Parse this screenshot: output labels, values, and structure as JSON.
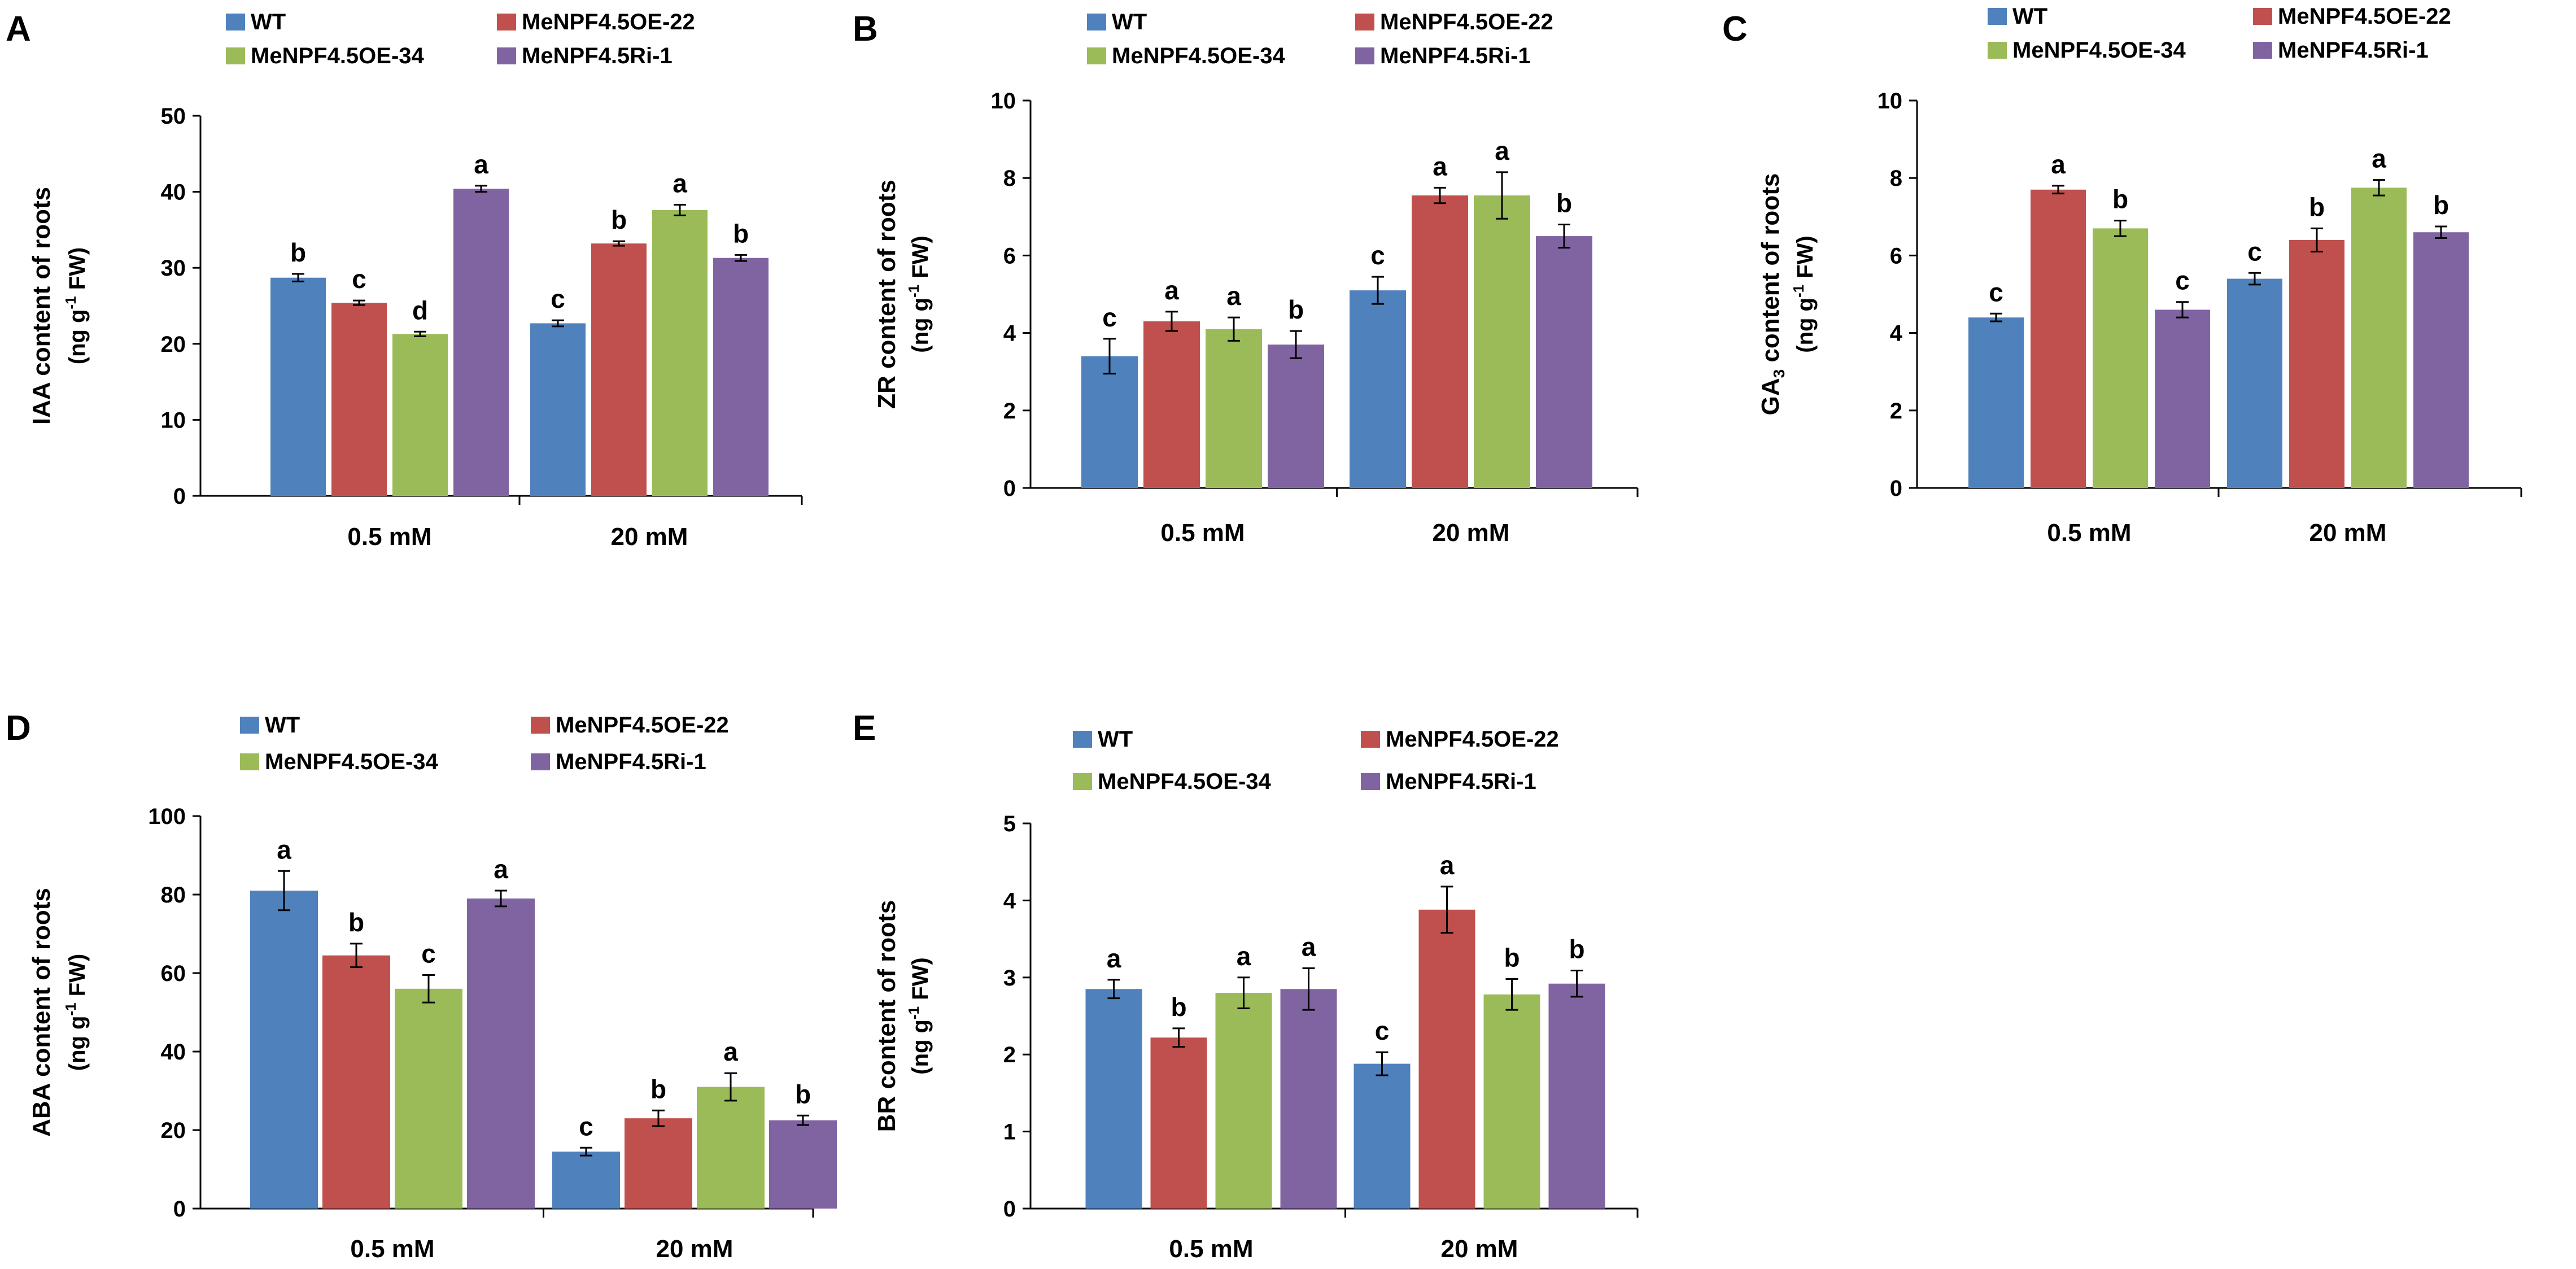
{
  "colors": {
    "WT": "#4f81bd",
    "OE22": "#c0504d",
    "OE34": "#9bbb59",
    "Ri1": "#8064a2",
    "axis": "#000000"
  },
  "chart_data": [
    {
      "panel": "A",
      "type": "bar",
      "categories": [
        "0.5 mM",
        "20 mM"
      ],
      "legend": [
        "WT",
        "MeNPF4.5OE-22",
        "MeNPF4.5OE-34",
        "MeNPF4.5Ri-1"
      ],
      "ylabel_main": "IAA  content of roots",
      "ylabel_unit": "(ng g",
      "ylabel_unit_sup": "-1",
      "ylabel_unit_end": " FW)",
      "ylim": [
        0,
        50
      ],
      "yticks": [
        0,
        10,
        20,
        30,
        40,
        50
      ],
      "ytick_labels": [
        "0",
        "10",
        "20",
        "30",
        "40",
        "50"
      ],
      "series": [
        {
          "name": "WT",
          "values": [
            28.7,
            22.7
          ],
          "errors": [
            0.5,
            0.4
          ],
          "letters": [
            "b",
            "c"
          ]
        },
        {
          "name": "MeNPF4.5OE-22",
          "values": [
            25.4,
            33.2
          ],
          "errors": [
            0.3,
            0.3
          ],
          "letters": [
            "c",
            "b"
          ]
        },
        {
          "name": "MeNPF4.5OE-34",
          "values": [
            21.3,
            37.6
          ],
          "errors": [
            0.3,
            0.7
          ],
          "letters": [
            "d",
            "a"
          ]
        },
        {
          "name": "MeNPF4.5Ri-1",
          "values": [
            40.4,
            31.3
          ],
          "errors": [
            0.4,
            0.4
          ],
          "letters": [
            "a",
            "b"
          ]
        }
      ]
    },
    {
      "panel": "B",
      "type": "bar",
      "categories": [
        "0.5 mM",
        "20 mM"
      ],
      "legend": [
        "WT",
        "MeNPF4.5OE-22",
        "MeNPF4.5OE-34",
        "MeNPF4.5Ri-1"
      ],
      "ylabel_main": "ZR content of roots",
      "ylabel_unit": "(ng g",
      "ylabel_unit_sup": "-1",
      "ylabel_unit_end": " FW)",
      "ylim": [
        0,
        10
      ],
      "yticks": [
        0,
        2,
        4,
        6,
        8,
        10
      ],
      "ytick_labels": [
        "0",
        "2",
        "4",
        "6",
        "8",
        "10"
      ],
      "series": [
        {
          "name": "WT",
          "values": [
            3.4,
            5.1
          ],
          "errors": [
            0.45,
            0.35
          ],
          "letters": [
            "c",
            "c"
          ]
        },
        {
          "name": "MeNPF4.5OE-22",
          "values": [
            4.3,
            7.55
          ],
          "errors": [
            0.25,
            0.2
          ],
          "letters": [
            "a",
            "a"
          ]
        },
        {
          "name": "MeNPF4.5OE-34",
          "values": [
            4.1,
            7.55
          ],
          "errors": [
            0.3,
            0.6
          ],
          "letters": [
            "a",
            "a"
          ]
        },
        {
          "name": "MeNPF4.5Ri-1",
          "values": [
            3.7,
            6.5
          ],
          "errors": [
            0.35,
            0.3
          ],
          "letters": [
            "b",
            "b"
          ]
        }
      ]
    },
    {
      "panel": "C",
      "type": "bar",
      "categories": [
        "0.5 mM",
        "20 mM"
      ],
      "legend": [
        "WT",
        "MeNPF4.5OE-22",
        "MeNPF4.5OE-34",
        "MeNPF4.5Ri-1"
      ],
      "ylabel_main": "GA",
      "ylabel_main_sub": "3",
      "ylabel_main_end": " content of roots",
      "ylabel_unit": "(ng g",
      "ylabel_unit_sup": "-1",
      "ylabel_unit_end": " FW)",
      "ylim": [
        0,
        10
      ],
      "yticks": [
        0,
        2,
        4,
        6,
        8,
        10
      ],
      "ytick_labels": [
        "0",
        "2",
        "4",
        "6",
        "8",
        "10"
      ],
      "series": [
        {
          "name": "WT",
          "values": [
            4.4,
            5.4
          ],
          "errors": [
            0.1,
            0.15
          ],
          "letters": [
            "c",
            "c"
          ]
        },
        {
          "name": "MeNPF4.5OE-22",
          "values": [
            7.7,
            6.4
          ],
          "errors": [
            0.1,
            0.3
          ],
          "letters": [
            "a",
            "b"
          ]
        },
        {
          "name": "MeNPF4.5OE-34",
          "values": [
            6.7,
            7.75
          ],
          "errors": [
            0.2,
            0.2
          ],
          "letters": [
            "b",
            "a"
          ]
        },
        {
          "name": "MeNPF4.5Ri-1",
          "values": [
            4.6,
            6.6
          ],
          "errors": [
            0.2,
            0.15
          ],
          "letters": [
            "c",
            "b"
          ]
        }
      ]
    },
    {
      "panel": "D",
      "type": "bar",
      "categories": [
        "0.5 mM",
        "20 mM"
      ],
      "legend": [
        "WT",
        "MeNPF4.5OE-22",
        "MeNPF4.5OE-34",
        "MeNPF4.5Ri-1"
      ],
      "ylabel_main": "ABA content of roots",
      "ylabel_unit": "(ng g",
      "ylabel_unit_sup": "-1",
      "ylabel_unit_end": " FW)",
      "ylim": [
        0,
        100
      ],
      "yticks": [
        0,
        20,
        40,
        60,
        80,
        100
      ],
      "ytick_labels": [
        "0",
        "20",
        "40",
        "60",
        "80",
        "100"
      ],
      "series": [
        {
          "name": "WT",
          "values": [
            81,
            14.5
          ],
          "errors": [
            5,
            1
          ],
          "letters": [
            "a",
            "c"
          ]
        },
        {
          "name": "MeNPF4.5OE-22",
          "values": [
            64.5,
            23
          ],
          "errors": [
            3,
            2
          ],
          "letters": [
            "b",
            "b"
          ]
        },
        {
          "name": "MeNPF4.5OE-34",
          "values": [
            56,
            31
          ],
          "errors": [
            3.5,
            3.5
          ],
          "letters": [
            "c",
            "a"
          ]
        },
        {
          "name": "MeNPF4.5Ri-1",
          "values": [
            79,
            22.5
          ],
          "errors": [
            2,
            1.2
          ],
          "letters": [
            "a",
            "b"
          ]
        }
      ]
    },
    {
      "panel": "E",
      "type": "bar",
      "categories": [
        "0.5 mM",
        "20 mM"
      ],
      "legend": [
        "WT",
        "MeNPF4.5OE-22",
        "MeNPF4.5OE-34",
        "MeNPF4.5Ri-1"
      ],
      "ylabel_main": "BR content of roots",
      "ylabel_unit": "(ng g",
      "ylabel_unit_sup": "-1",
      "ylabel_unit_end": " FW)",
      "ylim": [
        0,
        5
      ],
      "yticks": [
        0,
        1,
        2,
        3,
        4,
        5
      ],
      "ytick_labels": [
        "0",
        "1",
        "2",
        "3",
        "4",
        "5"
      ],
      "series": [
        {
          "name": "WT",
          "values": [
            2.85,
            1.88
          ],
          "errors": [
            0.12,
            0.15
          ],
          "letters": [
            "a",
            "c"
          ]
        },
        {
          "name": "MeNPF4.5OE-22",
          "values": [
            2.22,
            3.88
          ],
          "errors": [
            0.12,
            0.3
          ],
          "letters": [
            "b",
            "a"
          ]
        },
        {
          "name": "MeNPF4.5OE-34",
          "values": [
            2.8,
            2.78
          ],
          "errors": [
            0.2,
            0.2
          ],
          "letters": [
            "a",
            "b"
          ]
        },
        {
          "name": "MeNPF4.5Ri-1",
          "values": [
            2.85,
            2.92
          ],
          "errors": [
            0.27,
            0.17
          ],
          "letters": [
            "a",
            "b"
          ]
        }
      ]
    }
  ]
}
